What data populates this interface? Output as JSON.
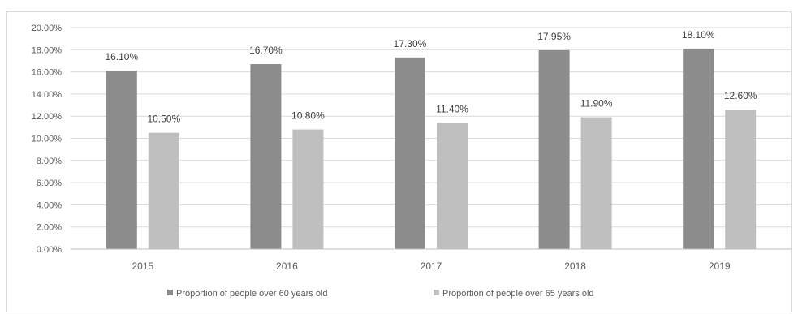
{
  "chart_data": {
    "type": "bar",
    "title": "",
    "xlabel": "",
    "ylabel": "",
    "categories": [
      "2015",
      "2016",
      "2017",
      "2018",
      "2019"
    ],
    "series": [
      {
        "name": "Proportion of people over 60 years old",
        "values": [
          16.1,
          16.7,
          17.3,
          17.95,
          18.1
        ],
        "labels": [
          "16.10%",
          "16.70%",
          "17.30%",
          "17.95%",
          "18.10%"
        ],
        "color": "#8c8c8c"
      },
      {
        "name": "Proportion of people over 65 years old",
        "values": [
          10.5,
          10.8,
          11.4,
          11.9,
          12.6
        ],
        "labels": [
          "10.50%",
          "10.80%",
          "11.40%",
          "11.90%",
          "12.60%"
        ],
        "color": "#bfbfbf"
      }
    ],
    "ylim": [
      0,
      20
    ],
    "yticks": [
      "0.00%",
      "2.00%",
      "4.00%",
      "6.00%",
      "8.00%",
      "10.00%",
      "12.00%",
      "14.00%",
      "16.00%",
      "18.00%",
      "20.00%"
    ],
    "grid": true,
    "legend_position": "bottom"
  }
}
